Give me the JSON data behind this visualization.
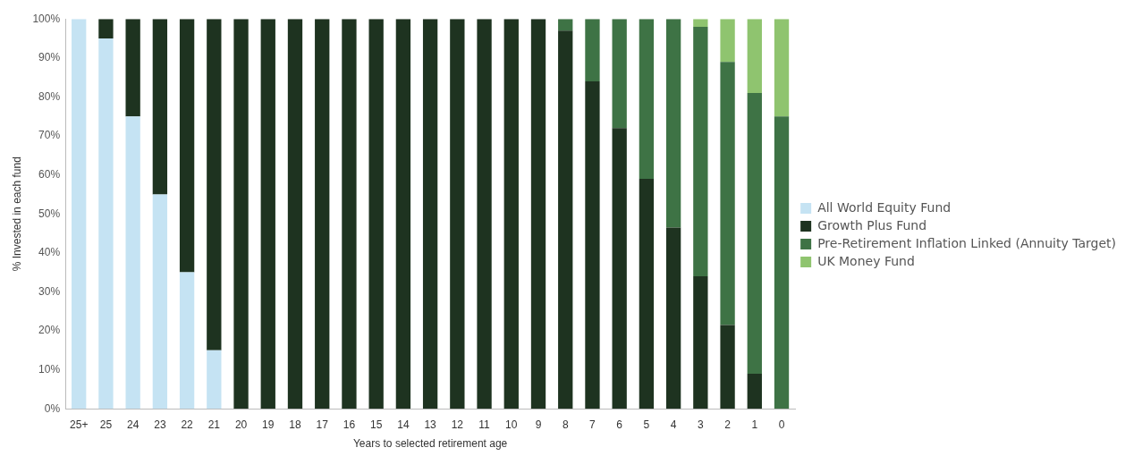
{
  "chart_data": {
    "type": "bar",
    "stacked": true,
    "xlabel": "Years to selected retirement age",
    "ylabel": "% Invested in each fund",
    "categories": [
      "25+",
      "25",
      "24",
      "23",
      "22",
      "21",
      "20",
      "19",
      "18",
      "17",
      "16",
      "15",
      "14",
      "13",
      "12",
      "11",
      "10",
      "9",
      "8",
      "7",
      "6",
      "5",
      "4",
      "3",
      "2",
      "1",
      "0"
    ],
    "series": [
      {
        "name": "All World Equity Fund",
        "color": "#c5e3f3",
        "values": [
          100,
          95,
          75,
          55,
          35,
          15,
          0,
          0,
          0,
          0,
          0,
          0,
          0,
          0,
          0,
          0,
          0,
          0,
          0,
          0,
          0,
          0,
          0,
          0,
          0,
          0,
          0
        ]
      },
      {
        "name": "Growth Plus Fund",
        "color": "#1e3320",
        "values": [
          0,
          5,
          25,
          45,
          65,
          85,
          100,
          100,
          100,
          100,
          100,
          100,
          100,
          100,
          100,
          100,
          100,
          100,
          97,
          84,
          72,
          59,
          46.5,
          34,
          21.5,
          9,
          0
        ]
      },
      {
        "name": "Pre-Retirement Inflation Linked (Annuity Target)",
        "color": "#3e7345",
        "values": [
          0,
          0,
          0,
          0,
          0,
          0,
          0,
          0,
          0,
          0,
          0,
          0,
          0,
          0,
          0,
          0,
          0,
          0,
          3,
          16,
          28,
          41,
          53.5,
          64,
          67.5,
          72,
          75
        ]
      },
      {
        "name": "UK Money Fund",
        "color": "#8fc46f",
        "values": [
          0,
          0,
          0,
          0,
          0,
          0,
          0,
          0,
          0,
          0,
          0,
          0,
          0,
          0,
          0,
          0,
          0,
          0,
          0,
          0,
          0,
          0,
          0,
          2,
          11,
          19,
          25
        ]
      }
    ],
    "ylim": [
      0,
      100
    ],
    "yticks": [
      {
        "value": 0,
        "label": "0%"
      },
      {
        "value": 10,
        "label": "10%"
      },
      {
        "value": 20,
        "label": "20%"
      },
      {
        "value": 30,
        "label": "30%"
      },
      {
        "value": 40,
        "label": "40%"
      },
      {
        "value": 50,
        "label": "50%"
      },
      {
        "value": 60,
        "label": "60%"
      },
      {
        "value": 70,
        "label": "70%"
      },
      {
        "value": 80,
        "label": "80%"
      },
      {
        "value": 90,
        "label": "90%"
      },
      {
        "value": 100,
        "label": "100%"
      }
    ],
    "grid": false,
    "legend": "right"
  }
}
